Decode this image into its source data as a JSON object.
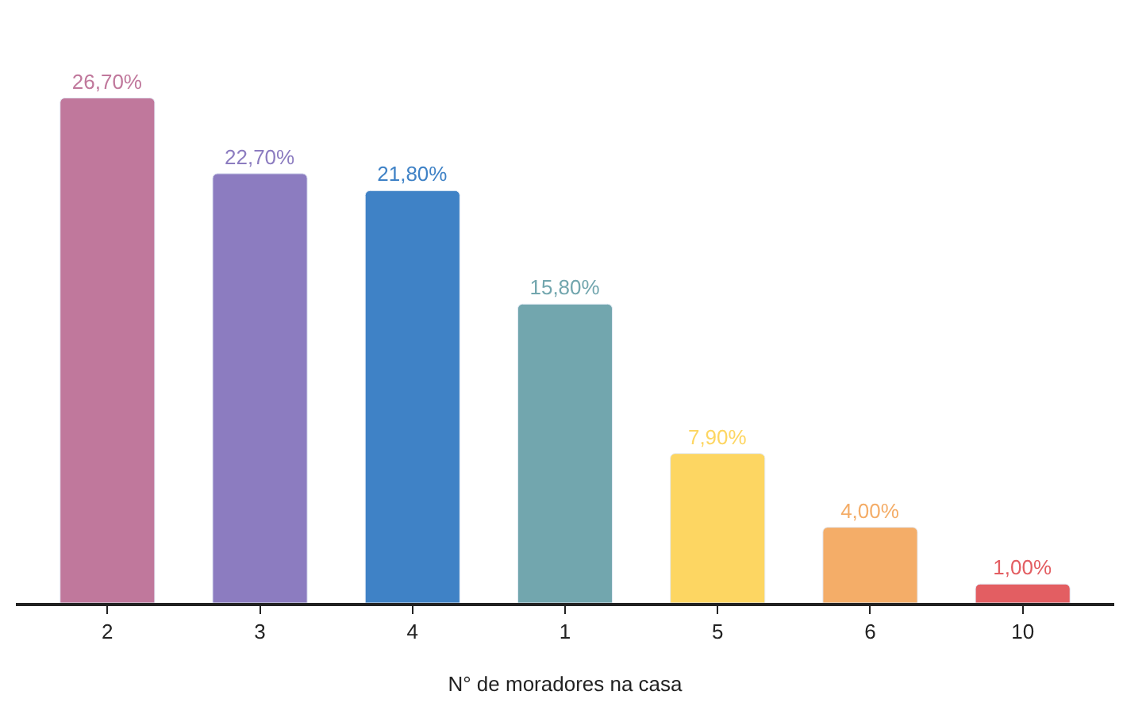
{
  "chart_data": {
    "type": "bar",
    "xlabel": "N° de moradores na casa",
    "categories": [
      "2",
      "3",
      "4",
      "1",
      "5",
      "6",
      "10"
    ],
    "values": [
      26.7,
      22.7,
      21.8,
      15.8,
      7.9,
      4.0,
      1.0
    ],
    "value_labels": [
      "26,70%",
      "22,70%",
      "21,80%",
      "15,80%",
      "7,90%",
      "4,00%",
      "1,00%"
    ],
    "colors": [
      "#c0789c",
      "#8c7cc0",
      "#3f82c6",
      "#72a6ae",
      "#fdd662",
      "#f4ad68",
      "#e35e62"
    ]
  }
}
